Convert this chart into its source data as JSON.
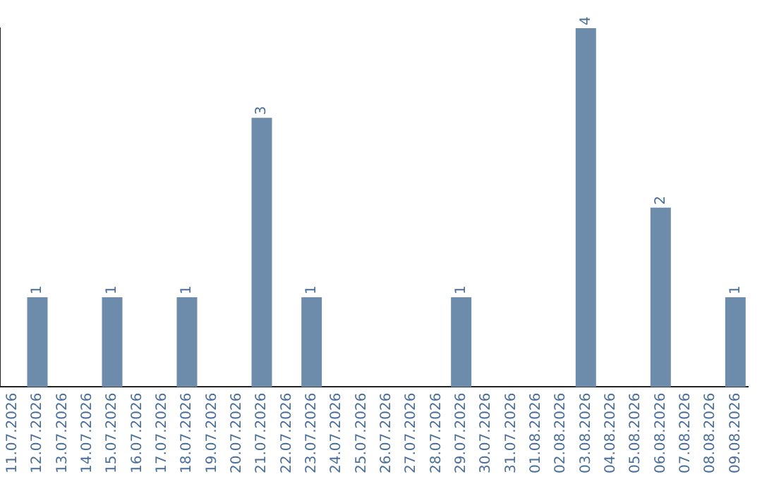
{
  "chart_data": {
    "type": "bar",
    "categories": [
      "11.07.2026",
      "12.07.2026",
      "13.07.2026",
      "14.07.2026",
      "15.07.2026",
      "16.07.2026",
      "17.07.2026",
      "18.07.2026",
      "19.07.2026",
      "20.07.2026",
      "21.07.2026",
      "22.07.2026",
      "23.07.2026",
      "24.07.2026",
      "25.07.2026",
      "26.07.2026",
      "27.07.2026",
      "28.07.2026",
      "29.07.2026",
      "30.07.2026",
      "31.07.2026",
      "01.08.2026",
      "02.08.2026",
      "03.08.2026",
      "04.08.2026",
      "05.08.2026",
      "06.08.2026",
      "07.08.2026",
      "08.08.2026",
      "09.08.2026"
    ],
    "values": [
      0,
      1,
      0,
      0,
      1,
      0,
      0,
      1,
      0,
      0,
      3,
      0,
      1,
      0,
      0,
      0,
      0,
      0,
      1,
      0,
      0,
      0,
      0,
      4,
      0,
      0,
      2,
      0,
      0,
      1
    ],
    "value_labels": [
      null,
      "1",
      null,
      null,
      "1",
      null,
      null,
      "1",
      null,
      null,
      "3",
      null,
      "1",
      null,
      null,
      null,
      null,
      null,
      "1",
      null,
      null,
      null,
      null,
      "4",
      null,
      null,
      "2",
      null,
      null,
      "1"
    ],
    "color": "#6d8cab",
    "grid": false,
    "legend": false,
    "tick_labels": "x"
  }
}
